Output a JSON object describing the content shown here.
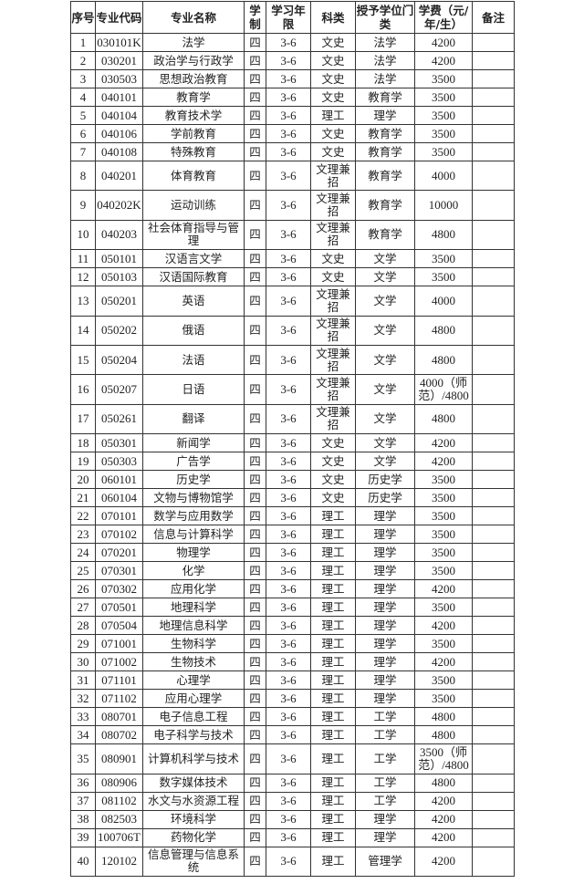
{
  "headers": [
    "序号",
    "专业代码",
    "专业名称",
    "学制",
    "学习年限",
    "科类",
    "授予学位门类",
    "学费（元/年/生）",
    "备注"
  ],
  "rows": [
    [
      "1",
      "030101K",
      "法学",
      "四",
      "3-6",
      "文史",
      "法学",
      "4200",
      ""
    ],
    [
      "2",
      "030201",
      "政治学与行政学",
      "四",
      "3-6",
      "文史",
      "法学",
      "4200",
      ""
    ],
    [
      "3",
      "030503",
      "思想政治教育",
      "四",
      "3-6",
      "文史",
      "法学",
      "3500",
      ""
    ],
    [
      "4",
      "040101",
      "教育学",
      "四",
      "3-6",
      "文史",
      "教育学",
      "3500",
      ""
    ],
    [
      "5",
      "040104",
      "教育技术学",
      "四",
      "3-6",
      "理工",
      "理学",
      "3500",
      ""
    ],
    [
      "6",
      "040106",
      "学前教育",
      "四",
      "3-6",
      "文史",
      "教育学",
      "3500",
      ""
    ],
    [
      "7",
      "040108",
      "特殊教育",
      "四",
      "3-6",
      "文史",
      "教育学",
      "3500",
      ""
    ],
    [
      "8",
      "040201",
      "体育教育",
      "四",
      "3-6",
      "文理兼招",
      "教育学",
      "4000",
      ""
    ],
    [
      "9",
      "040202K",
      "运动训练",
      "四",
      "3-6",
      "文理兼招",
      "教育学",
      "10000",
      ""
    ],
    [
      "10",
      "040203",
      "社会体育指导与管理",
      "四",
      "3-6",
      "文理兼招",
      "教育学",
      "4800",
      ""
    ],
    [
      "11",
      "050101",
      "汉语言文学",
      "四",
      "3-6",
      "文史",
      "文学",
      "3500",
      ""
    ],
    [
      "12",
      "050103",
      "汉语国际教育",
      "四",
      "3-6",
      "文史",
      "文学",
      "3500",
      ""
    ],
    [
      "13",
      "050201",
      "英语",
      "四",
      "3-6",
      "文理兼招",
      "文学",
      "4000",
      ""
    ],
    [
      "14",
      "050202",
      "俄语",
      "四",
      "3-6",
      "文理兼招",
      "文学",
      "4800",
      ""
    ],
    [
      "15",
      "050204",
      "法语",
      "四",
      "3-6",
      "文理兼招",
      "文学",
      "4800",
      ""
    ],
    [
      "16",
      "050207",
      "日语",
      "四",
      "3-6",
      "文理兼招",
      "文学",
      "4000（师范）/4800",
      ""
    ],
    [
      "17",
      "050261",
      "翻译",
      "四",
      "3-6",
      "文理兼招",
      "文学",
      "4800",
      ""
    ],
    [
      "18",
      "050301",
      "新闻学",
      "四",
      "3-6",
      "文史",
      "文学",
      "4200",
      ""
    ],
    [
      "19",
      "050303",
      "广告学",
      "四",
      "3-6",
      "文史",
      "文学",
      "4200",
      ""
    ],
    [
      "20",
      "060101",
      "历史学",
      "四",
      "3-6",
      "文史",
      "历史学",
      "3500",
      ""
    ],
    [
      "21",
      "060104",
      "文物与博物馆学",
      "四",
      "3-6",
      "文史",
      "历史学",
      "3500",
      ""
    ],
    [
      "22",
      "070101",
      "数学与应用数学",
      "四",
      "3-6",
      "理工",
      "理学",
      "3500",
      ""
    ],
    [
      "23",
      "070102",
      "信息与计算科学",
      "四",
      "3-6",
      "理工",
      "理学",
      "3500",
      ""
    ],
    [
      "24",
      "070201",
      "物理学",
      "四",
      "3-6",
      "理工",
      "理学",
      "3500",
      ""
    ],
    [
      "25",
      "070301",
      "化学",
      "四",
      "3-6",
      "理工",
      "理学",
      "3500",
      ""
    ],
    [
      "26",
      "070302",
      "应用化学",
      "四",
      "3-6",
      "理工",
      "理学",
      "4200",
      ""
    ],
    [
      "27",
      "070501",
      "地理科学",
      "四",
      "3-6",
      "理工",
      "理学",
      "3500",
      ""
    ],
    [
      "28",
      "070504",
      "地理信息科学",
      "四",
      "3-6",
      "理工",
      "理学",
      "4200",
      ""
    ],
    [
      "29",
      "071001",
      "生物科学",
      "四",
      "3-6",
      "理工",
      "理学",
      "3500",
      ""
    ],
    [
      "30",
      "071002",
      "生物技术",
      "四",
      "3-6",
      "理工",
      "理学",
      "4200",
      ""
    ],
    [
      "31",
      "071101",
      "心理学",
      "四",
      "3-6",
      "理工",
      "理学",
      "3500",
      ""
    ],
    [
      "32",
      "071102",
      "应用心理学",
      "四",
      "3-6",
      "理工",
      "理学",
      "3500",
      ""
    ],
    [
      "33",
      "080701",
      "电子信息工程",
      "四",
      "3-6",
      "理工",
      "工学",
      "4800",
      ""
    ],
    [
      "34",
      "080702",
      "电子科学与技术",
      "四",
      "3-6",
      "理工",
      "工学",
      "4800",
      ""
    ],
    [
      "35",
      "080901",
      "计算机科学与技术",
      "四",
      "3-6",
      "理工",
      "工学",
      "3500（师范）/4800",
      ""
    ],
    [
      "36",
      "080906",
      "数字媒体技术",
      "四",
      "3-6",
      "理工",
      "工学",
      "4800",
      ""
    ],
    [
      "37",
      "081102",
      "水文与水资源工程",
      "四",
      "3-6",
      "理工",
      "工学",
      "4200",
      ""
    ],
    [
      "38",
      "082503",
      "环境科学",
      "四",
      "3-6",
      "理工",
      "理学",
      "4200",
      ""
    ],
    [
      "39",
      "100706T",
      "药物化学",
      "四",
      "3-6",
      "理工",
      "理学",
      "4200",
      ""
    ],
    [
      "40",
      "120102",
      "信息管理与信息系统",
      "四",
      "3-6",
      "理工",
      "管理学",
      "4200",
      ""
    ]
  ]
}
